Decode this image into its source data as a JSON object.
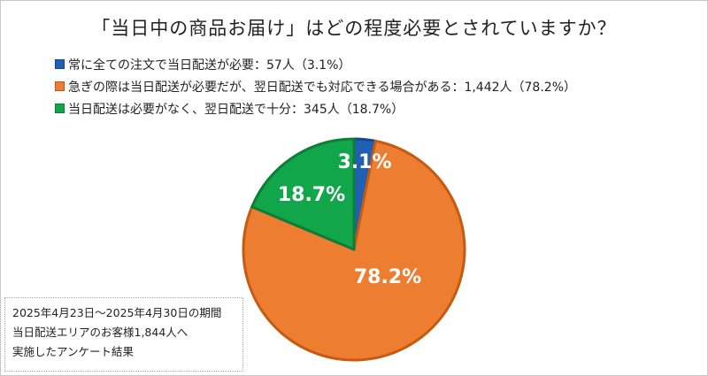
{
  "chart_data": {
    "type": "pie",
    "title": "「当日中の商品お届け」はどの程度必要とされていますか？",
    "series": [
      {
        "name": "常に全ての注文で当日配送が必要：57人（3.1%）",
        "value": 3.1,
        "count": 57,
        "label": "3.1%",
        "color": "#1f5fb4"
      },
      {
        "name": "急ぎの際は当日配送が必要だが、翌日配送でも対応できる場合がある：1,442人（78.2%）",
        "value": 78.2,
        "count": 1442,
        "label": "78.2%",
        "color": "#ed7d31"
      },
      {
        "name": "当日配送は必要がなく、翌日配送で十分：345人（18.7%）",
        "value": 18.7,
        "count": 345,
        "label": "18.7%",
        "color": "#12a64a"
      }
    ],
    "legend_position": "top-left",
    "start_angle_deg": 0,
    "direction": "clockwise"
  },
  "note": {
    "lines": [
      "2025年4月23日～2025年4月30日の期間",
      "当日配送エリアのお客様1,844人へ",
      "実施したアンケート結果"
    ]
  }
}
